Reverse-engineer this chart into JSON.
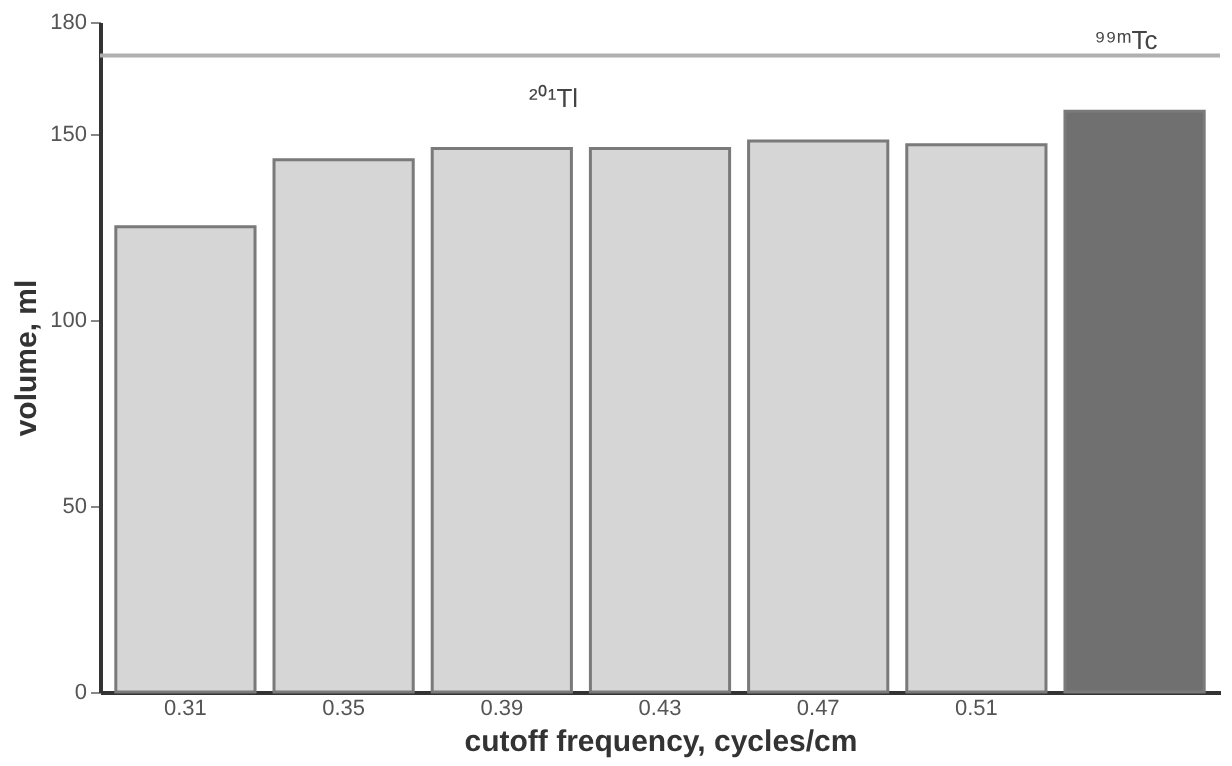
{
  "chart_data": {
    "type": "bar",
    "xlabel": "cutoff frequency,  cycles/cm",
    "ylabel": "volume,  ml",
    "categories": [
      "0.31",
      "0.35",
      "0.39",
      "0.43",
      "0.47",
      "0.51",
      null
    ],
    "values": [
      125,
      143,
      146,
      146,
      148,
      147,
      156
    ],
    "colors": [
      "#d6d6d6",
      "#d6d6d6",
      "#d6d6d6",
      "#d6d6d6",
      "#d6d6d6",
      "#d6d6d6",
      "#707070"
    ],
    "ylim": [
      0,
      180
    ],
    "yticks": [
      0,
      50,
      100,
      150,
      180
    ],
    "grid": false,
    "ref_lines": [
      {
        "axis": "y",
        "value": 171,
        "color": "#b0b0b0"
      }
    ],
    "annotations": [
      "²⁰¹Tl",
      "⁹⁹ᵐTc"
    ]
  }
}
